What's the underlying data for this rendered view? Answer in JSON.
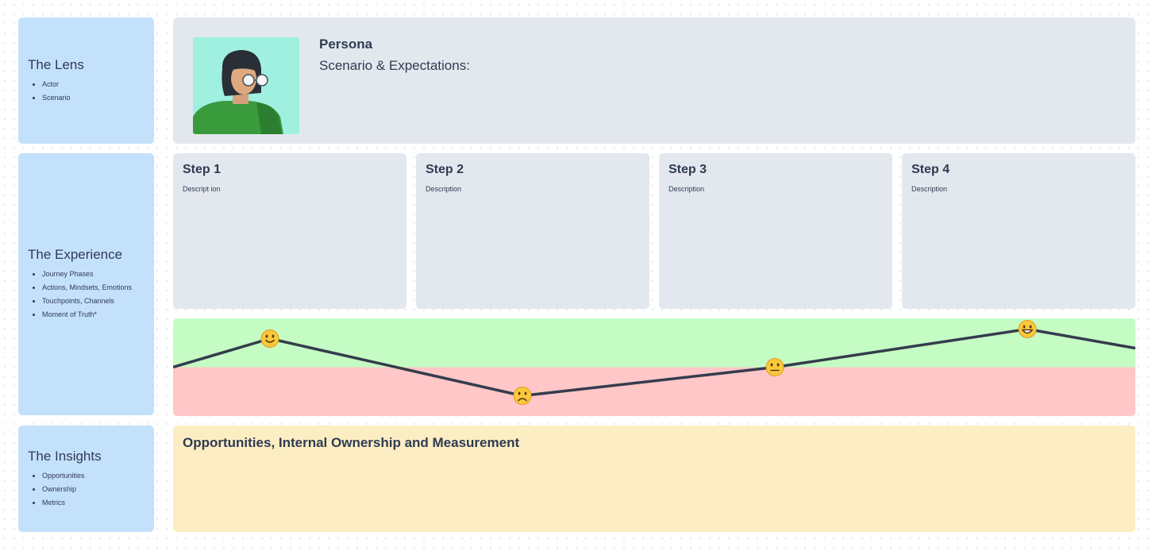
{
  "lens": {
    "title": "The Lens",
    "items": [
      "Actor",
      "Scenario"
    ]
  },
  "experience": {
    "title": "The Experience",
    "items": [
      "Journey Phases",
      "Actions, Mindsets, Emotions",
      "Touchpoints, Channels",
      "Moment of Truth*"
    ]
  },
  "insights_side": {
    "title": "The Insights",
    "items": [
      "Opportunities",
      "Ownership",
      "Metrics"
    ]
  },
  "persona": {
    "name": "Persona",
    "scenario": "Scenario  & Expectations:"
  },
  "steps": [
    {
      "title": "Step 1",
      "description": "Descript ion"
    },
    {
      "title": "Step 2",
      "description": "Description"
    },
    {
      "title": "Step 3",
      "description": "Description"
    },
    {
      "title": "Step 4",
      "description": "Description"
    }
  ],
  "emotion_curve": {
    "bands": {
      "positive_color": "#c4fcc4",
      "negative_color": "#ffc7c7"
    },
    "moods": [
      "slightly-smiling-face-icon",
      "frowning-face-icon",
      "neutral-face-icon",
      "grinning-face-icon"
    ],
    "levels": [
      0.6,
      -0.6,
      0.0,
      0.8
    ]
  },
  "insights": {
    "title": "Opportunities, Internal Ownership and Measurement"
  },
  "colors": {
    "side_panel": "#c4e1fc",
    "card": "#e3e8ef",
    "insights": "#fdedc3",
    "text": "#2f3b52"
  }
}
